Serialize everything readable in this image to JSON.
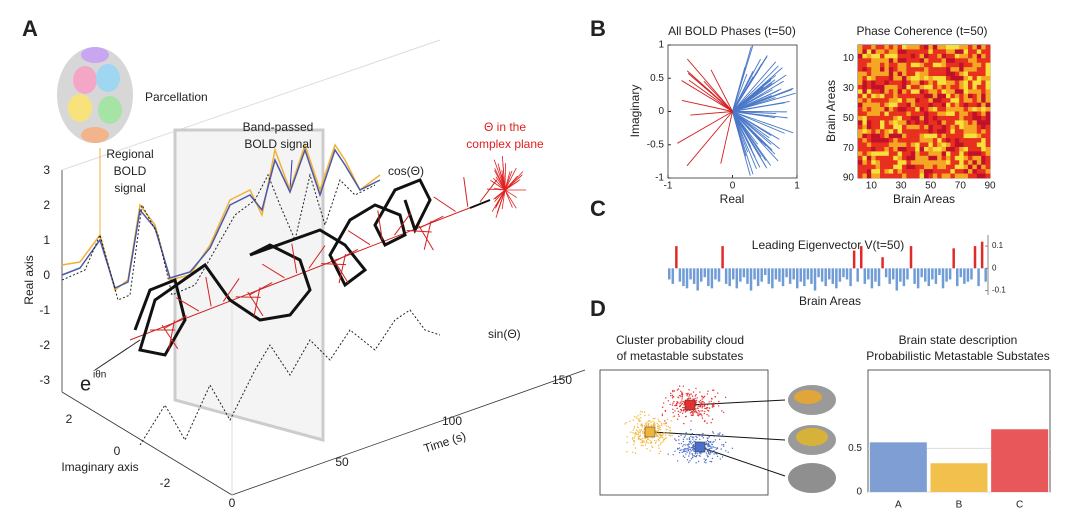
{
  "figure": {
    "panel_labels": [
      "A",
      "B",
      "C",
      "D"
    ],
    "panel_a": {
      "parcellation": "Parcellation",
      "regional": [
        "Regional",
        "BOLD",
        "signal"
      ],
      "band_passed": [
        "Band-passed",
        "BOLD signal"
      ],
      "cos": "cos(Θ)",
      "complex_plane": [
        "Θ in the",
        "complex plane"
      ],
      "sin": "sin(Θ)",
      "euler": "e",
      "euler_exp": "iθn",
      "real_axis": "Real axis",
      "imag_axis": "Imaginary axis",
      "time_axis": "Time (s)",
      "real_ticks": [
        3,
        2,
        1,
        0,
        -1,
        -2,
        -3
      ],
      "imag_ticks": [
        2,
        0,
        -2
      ],
      "time_ticks": [
        0,
        50,
        100,
        150
      ]
    }
  },
  "chart_data": [
    {
      "type": "phase",
      "title": "All BOLD Phases (t=50)",
      "xlabel": "Real",
      "ylabel": "Imaginary",
      "xlim": [
        -1,
        1
      ],
      "ylim": [
        -1,
        1
      ],
      "xticks": [
        -1,
        0,
        1
      ],
      "yticks": [
        -1,
        -0.5,
        0,
        0.5,
        1
      ]
    },
    {
      "type": "heatmap",
      "title": "Phase Coherence (t=50)",
      "xlabel": "Brain Areas",
      "ylabel": "Brain Areas",
      "xlim": [
        1,
        90
      ],
      "ylim": [
        1,
        90
      ],
      "xticks": [
        10,
        30,
        50,
        70,
        90
      ],
      "yticks": [
        10,
        30,
        50,
        70,
        90
      ]
    },
    {
      "type": "eigen",
      "title": "Leading Eigenvector V(t=50)",
      "xlabel": "Brain Areas",
      "ylim": [
        -0.12,
        0.15
      ],
      "yticks": [
        -0.1,
        0,
        0.1
      ],
      "colors": {
        "positive": "#e02a2a",
        "negative": "#6f9bd6"
      },
      "values": [
        -0.05,
        -0.07,
        0.1,
        -0.06,
        -0.08,
        -0.09,
        -0.05,
        -0.07,
        -0.1,
        -0.06,
        -0.04,
        -0.08,
        -0.09,
        -0.05,
        -0.06,
        0.1,
        -0.07,
        -0.08,
        -0.05,
        -0.09,
        -0.06,
        -0.04,
        -0.07,
        -0.1,
        -0.05,
        -0.08,
        -0.06,
        -0.03,
        -0.07,
        -0.09,
        -0.05,
        -0.06,
        -0.08,
        -0.04,
        -0.07,
        -0.05,
        -0.09,
        -0.06,
        -0.08,
        -0.05,
        -0.07,
        -0.1,
        -0.04,
        -0.06,
        -0.08,
        -0.05,
        -0.07,
        -0.09,
        -0.06,
        -0.04,
        -0.05,
        -0.08,
        0.08,
        -0.06,
        0.1,
        -0.07,
        -0.05,
        -0.09,
        -0.06,
        -0.08,
        0.05,
        -0.04,
        -0.07,
        -0.05,
        -0.1,
        -0.06,
        -0.08,
        -0.05,
        0.1,
        -0.07,
        -0.09,
        -0.04,
        -0.06,
        -0.08,
        -0.05,
        -0.07,
        -0.03,
        -0.09,
        -0.06,
        -0.05,
        0.09,
        -0.08,
        -0.04,
        -0.07,
        -0.06,
        -0.05,
        0.1,
        -0.08,
        0.12,
        -0.06
      ]
    },
    {
      "type": "cloud",
      "title": [
        "Cluster probability cloud",
        "of metastable substates"
      ],
      "colors": [
        "#e53030",
        "#f2b53a",
        "#4a6fc8"
      ]
    },
    {
      "type": "bar",
      "title": [
        "Brain state description",
        "Probabilistic Metastable Substates"
      ],
      "categories": [
        "A",
        "B",
        "C"
      ],
      "values": [
        0.57,
        0.33,
        0.72
      ],
      "colors": [
        "#7f9fd4",
        "#f2c04c",
        "#e8575a"
      ],
      "ylim": [
        0,
        1.4
      ],
      "yticks": [
        0,
        0.5
      ],
      "grid": true
    }
  ]
}
